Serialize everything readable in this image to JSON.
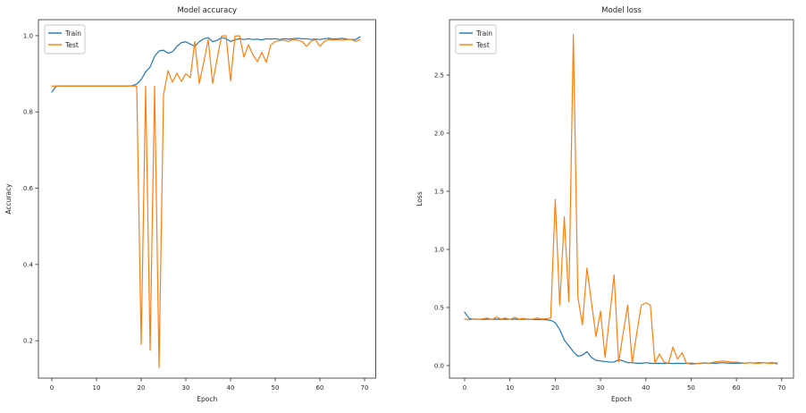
{
  "figure": {
    "background": "#ffffff",
    "text_color": "#262626",
    "train_color": "#1f77b4",
    "test_color": "#ff7f0e"
  },
  "chart_data": [
    {
      "type": "line",
      "title": "Model accuracy",
      "xlabel": "Epoch",
      "ylabel": "Accuracy",
      "x_note": "x value = epoch index, 0 to 69",
      "xticks": [
        0,
        10,
        20,
        30,
        40,
        50,
        60,
        70
      ],
      "yticks": [
        0.2,
        0.4,
        0.6,
        0.8,
        1.0
      ],
      "xlim": [
        -3.0,
        72.5
      ],
      "ylim": [
        0.102,
        1.042
      ],
      "grid": false,
      "legend": {
        "position": "upper left",
        "entries": [
          "Train",
          "Test"
        ]
      },
      "series": [
        {
          "name": "Train",
          "color": "#1f77b4",
          "values": [
            0.852,
            0.868,
            0.868,
            0.868,
            0.868,
            0.868,
            0.868,
            0.868,
            0.868,
            0.868,
            0.868,
            0.868,
            0.868,
            0.868,
            0.868,
            0.868,
            0.868,
            0.868,
            0.869,
            0.873,
            0.885,
            0.905,
            0.918,
            0.946,
            0.96,
            0.962,
            0.954,
            0.958,
            0.972,
            0.982,
            0.984,
            0.978,
            0.972,
            0.984,
            0.992,
            0.995,
            0.984,
            0.988,
            0.995,
            0.992,
            0.985,
            0.989,
            0.992,
            0.99,
            0.992,
            0.99,
            0.991,
            0.989,
            0.992,
            0.991,
            0.992,
            0.99,
            0.992,
            0.991,
            0.992,
            0.993,
            0.992,
            0.992,
            0.99,
            0.991,
            0.99,
            0.992,
            0.993,
            0.991,
            0.992,
            0.993,
            0.991,
            0.99,
            0.99,
            0.997
          ]
        },
        {
          "name": "Test",
          "color": "#ff7f0e",
          "values": [
            0.868,
            0.868,
            0.868,
            0.868,
            0.868,
            0.868,
            0.868,
            0.868,
            0.868,
            0.868,
            0.868,
            0.868,
            0.868,
            0.868,
            0.868,
            0.868,
            0.868,
            0.868,
            0.868,
            0.868,
            0.19,
            0.868,
            0.175,
            0.868,
            0.13,
            0.845,
            0.908,
            0.878,
            0.902,
            0.88,
            0.9,
            0.89,
            0.985,
            0.875,
            0.93,
            0.99,
            0.875,
            0.94,
            0.999,
            1.0,
            0.882,
            0.999,
            1.0,
            0.944,
            0.976,
            0.95,
            0.932,
            0.956,
            0.93,
            0.975,
            0.985,
            0.987,
            0.988,
            0.985,
            0.99,
            0.988,
            0.985,
            0.972,
            0.985,
            0.99,
            0.972,
            0.985,
            0.99,
            0.988,
            0.99,
            0.988,
            0.99,
            0.99,
            0.985,
            0.99
          ]
        }
      ]
    },
    {
      "type": "line",
      "title": "Model loss",
      "xlabel": "Epoch",
      "ylabel": "Loss",
      "x_note": "x value = epoch index, 0 to 69",
      "xticks": [
        0,
        10,
        20,
        30,
        40,
        50,
        60,
        70
      ],
      "yticks": [
        0.0,
        0.5,
        1.0,
        1.5,
        2.0,
        2.5
      ],
      "xlim": [
        -3.35,
        72.6
      ],
      "ylim": [
        -0.108,
        2.977
      ],
      "grid": false,
      "legend": {
        "position": "upper left",
        "entries": [
          "Train",
          "Test"
        ]
      },
      "series": [
        {
          "name": "Train",
          "color": "#1f77b4",
          "values": [
            0.46,
            0.405,
            0.4,
            0.4,
            0.398,
            0.4,
            0.399,
            0.4,
            0.398,
            0.4,
            0.399,
            0.4,
            0.398,
            0.399,
            0.4,
            0.398,
            0.397,
            0.396,
            0.395,
            0.39,
            0.37,
            0.31,
            0.22,
            0.17,
            0.12,
            0.08,
            0.09,
            0.12,
            0.07,
            0.045,
            0.04,
            0.035,
            0.03,
            0.03,
            0.05,
            0.04,
            0.025,
            0.025,
            0.02,
            0.02,
            0.025,
            0.02,
            0.018,
            0.02,
            0.018,
            0.02,
            0.018,
            0.02,
            0.018,
            0.02,
            0.02,
            0.018,
            0.02,
            0.022,
            0.02,
            0.02,
            0.022,
            0.025,
            0.022,
            0.02,
            0.022,
            0.02,
            0.022,
            0.025,
            0.022,
            0.025,
            0.025,
            0.022,
            0.025,
            0.015
          ]
        },
        {
          "name": "Test",
          "color": "#ff7f0e",
          "values": [
            0.4,
            0.395,
            0.4,
            0.398,
            0.402,
            0.41,
            0.395,
            0.418,
            0.4,
            0.41,
            0.396,
            0.415,
            0.4,
            0.406,
            0.396,
            0.4,
            0.41,
            0.4,
            0.404,
            0.41,
            1.43,
            0.52,
            1.28,
            0.55,
            2.85,
            0.59,
            0.35,
            0.84,
            0.545,
            0.25,
            0.47,
            0.07,
            0.42,
            0.78,
            0.03,
            0.28,
            0.52,
            0.02,
            0.28,
            0.52,
            0.54,
            0.52,
            0.02,
            0.1,
            0.03,
            0.02,
            0.16,
            0.055,
            0.11,
            0.02,
            0.012,
            0.015,
            0.02,
            0.025,
            0.02,
            0.03,
            0.035,
            0.04,
            0.035,
            0.03,
            0.03,
            0.025,
            0.02,
            0.025,
            0.02,
            0.02,
            0.025,
            0.02,
            0.02,
            0.025
          ]
        }
      ]
    }
  ]
}
